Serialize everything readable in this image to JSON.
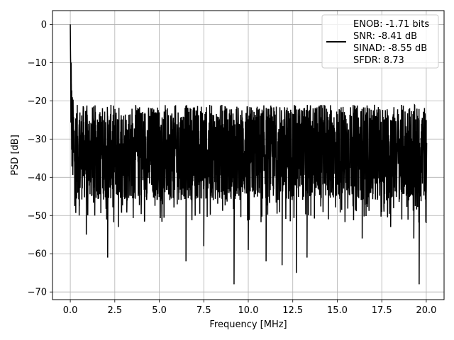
{
  "chart_data": {
    "type": "line",
    "title": "",
    "xlabel": "Frequency [MHz]",
    "ylabel": "PSD [dB]",
    "xlim": [
      -1.0,
      21.0
    ],
    "ylim": [
      -72.0,
      3.6
    ],
    "xticks": [
      0.0,
      2.5,
      5.0,
      7.5,
      10.0,
      12.5,
      15.0,
      17.5,
      20.0
    ],
    "xtick_labels": [
      "0.0",
      "2.5",
      "5.0",
      "7.5",
      "10.0",
      "12.5",
      "15.0",
      "17.5",
      "20.0"
    ],
    "yticks": [
      0,
      -10,
      -20,
      -30,
      -40,
      -50,
      -60,
      -70
    ],
    "ytick_labels": [
      "0",
      "−10",
      "−20",
      "−30",
      "−40",
      "−50",
      "−60",
      "−70"
    ],
    "grid": true,
    "legend_position": "top-right",
    "legend_lines": [
      "ENOB: -1.71 bits",
      "SNR: -8.41 dB",
      "SINAD: -8.55 dB",
      "SFDR: 8.73"
    ],
    "series": [
      {
        "color": "#000000",
        "x_range": [
          0.0,
          20.0
        ],
        "peak": {
          "x": 0.0,
          "y": 0.0
        },
        "noise_floor_mean_db": -31,
        "noise_band_db": [
          -46,
          -21
        ],
        "notable_points": [
          {
            "x": 0.05,
            "y": -10
          },
          {
            "x": 0.1,
            "y": -20
          },
          {
            "x": 0.5,
            "y": -50
          },
          {
            "x": 0.9,
            "y": -55
          },
          {
            "x": 2.1,
            "y": -61
          },
          {
            "x": 2.7,
            "y": -53
          },
          {
            "x": 6.5,
            "y": -62
          },
          {
            "x": 7.5,
            "y": -58
          },
          {
            "x": 9.2,
            "y": -68
          },
          {
            "x": 10.0,
            "y": -59
          },
          {
            "x": 11.0,
            "y": -62
          },
          {
            "x": 11.9,
            "y": -63
          },
          {
            "x": 12.7,
            "y": -65
          },
          {
            "x": 13.3,
            "y": -61
          },
          {
            "x": 14.5,
            "y": -51
          },
          {
            "x": 16.4,
            "y": -56
          },
          {
            "x": 18.0,
            "y": -53
          },
          {
            "x": 19.3,
            "y": -56
          },
          {
            "x": 19.6,
            "y": -68
          },
          {
            "x": 20.0,
            "y": -44
          }
        ]
      }
    ]
  }
}
